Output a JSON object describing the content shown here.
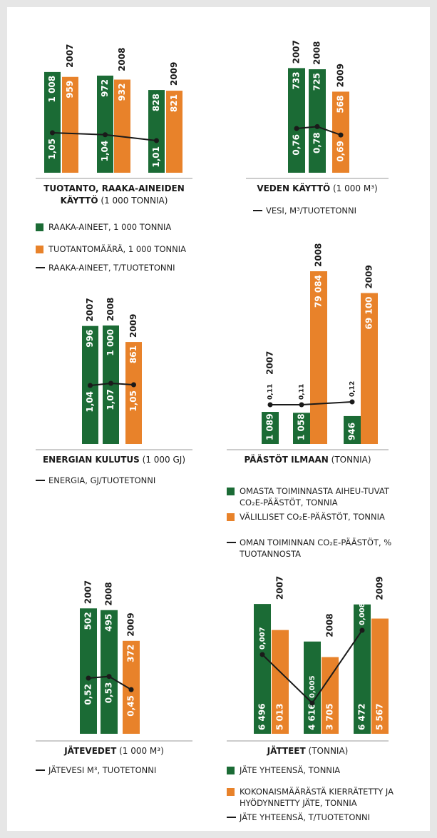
{
  "chart_data": [
    {
      "type": "bar",
      "title": "TUOTANTO, RAAKA-AINEIDEN KÄYTTÖ",
      "subtitle": "(1 000 TONNIA)",
      "categories": [
        "2007",
        "2008",
        "2009"
      ],
      "series": [
        {
          "name": "RAAKA-AINEET, 1 000 TONNIA",
          "color": "#1b6b35",
          "values": [
            1008,
            972,
            828
          ],
          "value_labels": [
            "1 008",
            "972",
            "828"
          ]
        },
        {
          "name": "TUOTANTOMÄÄRÄ, 1 000 TONNIA",
          "color": "#e8822a",
          "values": [
            959,
            932,
            821
          ]
        },
        {
          "name": "RAAKA-AINEET, T/TUOTETONNI",
          "type": "line",
          "color": "#1a1a1a",
          "values": [
            1.05,
            1.04,
            1.01
          ],
          "value_labels": [
            "1,05",
            "1,04",
            "1,01"
          ]
        }
      ]
    },
    {
      "type": "bar",
      "title": "VEDEN KÄYTTÖ",
      "subtitle": "(1 000 M³)",
      "categories": [
        "2007",
        "2008",
        "2009"
      ],
      "series": [
        {
          "colors": [
            "#1b6b35",
            "#1b6b35",
            "#e8822a"
          ],
          "values": [
            733,
            725,
            568
          ]
        },
        {
          "name": "VESI, M³/TUOTETONNI",
          "type": "line",
          "color": "#1a1a1a",
          "values": [
            0.76,
            0.78,
            0.69
          ],
          "value_labels": [
            "0,76",
            "0,78",
            "0,69"
          ]
        }
      ]
    },
    {
      "type": "bar",
      "title": "ENERGIAN KULUTUS",
      "subtitle": "(1 000 GJ)",
      "categories": [
        "2007",
        "2008",
        "2009"
      ],
      "series": [
        {
          "colors": [
            "#1b6b35",
            "#1b6b35",
            "#e8822a"
          ],
          "values": [
            996,
            1000,
            861
          ],
          "value_labels": [
            "996",
            "1 000",
            "861"
          ]
        },
        {
          "name": "ENERGIA, GJ/TUOTETONNI",
          "type": "line",
          "color": "#1a1a1a",
          "values": [
            1.04,
            1.07,
            1.05
          ],
          "value_labels": [
            "1,04",
            "1,07",
            "1,05"
          ]
        }
      ]
    },
    {
      "type": "bar",
      "title": "PÄÄSTÖT ILMAAN",
      "subtitle": "(TONNIA)",
      "categories": [
        "2007",
        "2008",
        "2009"
      ],
      "series": [
        {
          "name": "OMASTA TOIMINNASTA AIHEU-TUVAT CO₂E-PÄÄSTÖT, TONNIA",
          "color": "#1b6b35",
          "values": [
            1089,
            1058,
            946
          ],
          "value_labels": [
            "1 089",
            "1 058",
            "946"
          ]
        },
        {
          "name": "VÄLILLISET CO₂E-PÄÄSTÖT, TONNIA",
          "color": "#e8822a",
          "values": [
            null,
            79084,
            69100
          ],
          "value_labels": [
            null,
            "79 084",
            "69 100"
          ]
        },
        {
          "name": "OMAN TOIMINNAN CO₂E-PÄÄSTÖT, % TUOTANNOSTA",
          "type": "line",
          "color": "#1a1a1a",
          "values": [
            0.11,
            0.11,
            0.12
          ],
          "value_labels": [
            "0,11",
            "0,11",
            "0,12"
          ]
        }
      ]
    },
    {
      "type": "bar",
      "title": "JÄTEVEDET",
      "subtitle": "(1 000 M³)",
      "categories": [
        "2007",
        "2008",
        "2009"
      ],
      "series": [
        {
          "colors": [
            "#1b6b35",
            "#1b6b35",
            "#e8822a"
          ],
          "values": [
            502,
            495,
            372
          ]
        },
        {
          "name": "JÄTEVESI M³, TUOTETONNI",
          "type": "line",
          "color": "#1a1a1a",
          "values": [
            0.52,
            0.53,
            0.45
          ],
          "value_labels": [
            "0,52",
            "0,53",
            "0,45"
          ]
        }
      ]
    },
    {
      "type": "bar",
      "title": "JÄTTEET",
      "subtitle": "(TONNIA)",
      "categories": [
        "2007",
        "2008",
        "2009"
      ],
      "series": [
        {
          "name": "JÄTE YHTEENSÄ, TONNIA",
          "color": "#1b6b35",
          "values": [
            6496,
            4616,
            6472
          ],
          "value_labels": [
            "6 496",
            "4 616",
            "6 472"
          ]
        },
        {
          "name": "KOKONAISMÄÄRÄSTÄ KIERRÄTETTY JA HYÖDYNNETTY JÄTE, TONNIA",
          "color": "#e8822a",
          "values": [
            5013,
            3705,
            5567
          ],
          "value_labels": [
            "5 013",
            "3 705",
            "5 567"
          ]
        },
        {
          "name": "JÄTE YHTEENSÄ, T/TUOTETONNI",
          "type": "line",
          "color": "#1a1a1a",
          "values": [
            0.007,
            0.005,
            0.008
          ],
          "value_labels": [
            "0,007",
            "0,005",
            "0,008"
          ]
        }
      ]
    }
  ]
}
